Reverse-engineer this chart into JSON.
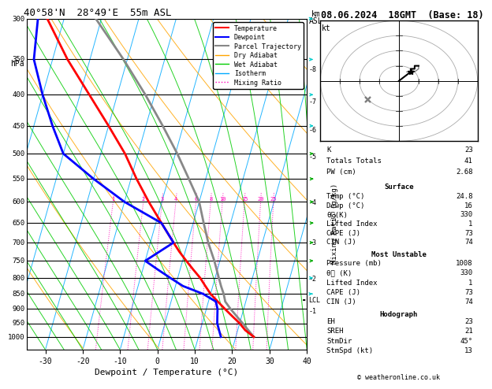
{
  "title_left": "40°58'N  28°49'E  55m ASL",
  "title_right": "08.06.2024  18GMT  (Base: 18)",
  "xlabel": "Dewpoint / Temperature (°C)",
  "pressure_levels": [
    300,
    350,
    400,
    450,
    500,
    550,
    600,
    650,
    700,
    750,
    800,
    850,
    900,
    950,
    1000
  ],
  "xlim": [
    -35,
    40
  ],
  "pmin": 300,
  "pmax": 1050,
  "skew_factor": 25.0,
  "temp_color": "#FF0000",
  "dewp_color": "#0000FF",
  "parcel_color": "#888888",
  "dry_adiabat_color": "#FFA500",
  "wet_adiabat_color": "#00CC00",
  "isotherm_color": "#00AAFF",
  "mixing_ratio_color": "#FF00BB",
  "background": "#FFFFFF",
  "temp_profile_p": [
    1000,
    975,
    950,
    925,
    900,
    875,
    850,
    825,
    800,
    775,
    750,
    725,
    700,
    650,
    600,
    550,
    500,
    450,
    400,
    350,
    300
  ],
  "temp_profile_t": [
    24.8,
    22.0,
    20.0,
    17.5,
    15.0,
    12.5,
    10.0,
    8.0,
    6.0,
    3.5,
    1.0,
    -1.5,
    -3.8,
    -8.5,
    -13.5,
    -18.5,
    -23.5,
    -30.0,
    -37.5,
    -46.0,
    -54.5
  ],
  "dewp_profile_p": [
    1000,
    975,
    950,
    925,
    900,
    875,
    850,
    825,
    800,
    775,
    750,
    700,
    650,
    600,
    550,
    500,
    450,
    400,
    350,
    300
  ],
  "dewp_profile_t": [
    16.0,
    15.0,
    14.0,
    13.5,
    13.0,
    12.0,
    8.0,
    2.0,
    -2.0,
    -6.0,
    -10.0,
    -3.8,
    -8.5,
    -20.0,
    -30.0,
    -40.0,
    -45.0,
    -50.0,
    -55.0,
    -57.0
  ],
  "parcel_p": [
    1000,
    950,
    900,
    875,
    850,
    825,
    800,
    750,
    700,
    650,
    600,
    550,
    500,
    450,
    400,
    350,
    300
  ],
  "parcel_t": [
    24.8,
    20.8,
    16.5,
    14.5,
    13.5,
    12.2,
    11.0,
    8.5,
    5.5,
    2.8,
    0.0,
    -4.5,
    -9.5,
    -15.5,
    -22.5,
    -31.0,
    -41.5
  ],
  "mixing_ratios": [
    1,
    2,
    3,
    4,
    6,
    8,
    10,
    15,
    20,
    25
  ],
  "lcl_pressure": 870,
  "km_ticks": [
    1,
    2,
    3,
    4,
    5,
    6,
    7,
    8
  ],
  "km_pressures": [
    907,
    802,
    700,
    601,
    506,
    457,
    411,
    363
  ],
  "stats_K": 23,
  "stats_TT": 41,
  "stats_PW": 2.68,
  "surf_temp": 24.8,
  "surf_dewp": 16,
  "surf_the": 330,
  "surf_li": 1,
  "surf_cape": 73,
  "surf_cin": 74,
  "mu_pres": 1008,
  "mu_the": 330,
  "mu_li": 1,
  "mu_cape": 73,
  "mu_cin": 74,
  "hodo_eh": 23,
  "hodo_sreh": 21,
  "hodo_stmdir": "45°",
  "hodo_stmspd": 13,
  "wind_barb_p": [
    1000,
    950,
    900,
    850,
    800,
    750,
    700,
    650,
    600,
    550,
    500,
    450,
    400,
    350,
    300
  ],
  "wind_barb_spd": [
    5,
    5,
    5,
    5,
    5,
    10,
    10,
    10,
    10,
    10,
    10,
    5,
    5,
    5,
    5
  ],
  "wind_barb_dir": [
    180,
    180,
    180,
    200,
    220,
    240,
    250,
    260,
    270,
    260,
    250,
    240,
    230,
    220,
    210
  ]
}
